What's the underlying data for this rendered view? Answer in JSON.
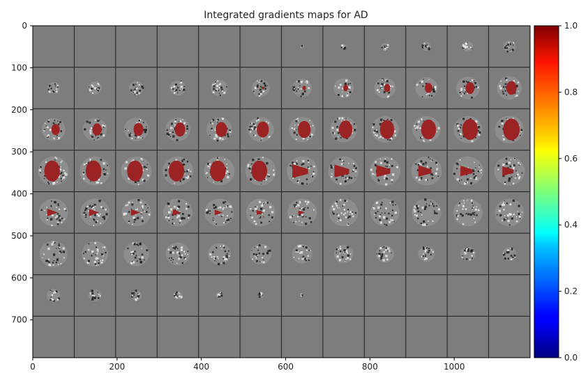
{
  "figure": {
    "title": "Integrated gradients maps for AD"
  },
  "axes": {
    "x_ticks": [
      "0",
      "200",
      "400",
      "600",
      "800",
      "1000"
    ],
    "y_ticks": [
      "0",
      "100",
      "200",
      "300",
      "400",
      "500",
      "600",
      "700"
    ]
  },
  "colorbar": {
    "ticks": [
      "1.0",
      "0.8",
      "0.6",
      "0.4",
      "0.2",
      "0.0"
    ],
    "colormap": "jet",
    "range": [
      0,
      1
    ]
  },
  "grid": {
    "rows": 8,
    "cols": 12
  },
  "chart_data": {
    "type": "heatmap",
    "title": "Integrated gradients maps for AD",
    "xlabel": "",
    "ylabel": "",
    "xlim": [
      0,
      1180
    ],
    "ylim": [
      790,
      0
    ],
    "xticks": [
      0,
      200,
      400,
      600,
      800,
      1000
    ],
    "yticks": [
      0,
      100,
      200,
      300,
      400,
      500,
      600,
      700
    ],
    "colorbar": {
      "min": 0.0,
      "max": 1.0,
      "ticks": [
        0.0,
        0.2,
        0.4,
        0.6,
        0.8,
        1.0
      ],
      "colormap": "jet"
    },
    "panels": {
      "rows": 8,
      "cols": 12
    }
  },
  "colors": {
    "background_gray": "#7d7d7d",
    "grid_line": "#1f1f1f",
    "highlight_red": "#9b2323"
  }
}
